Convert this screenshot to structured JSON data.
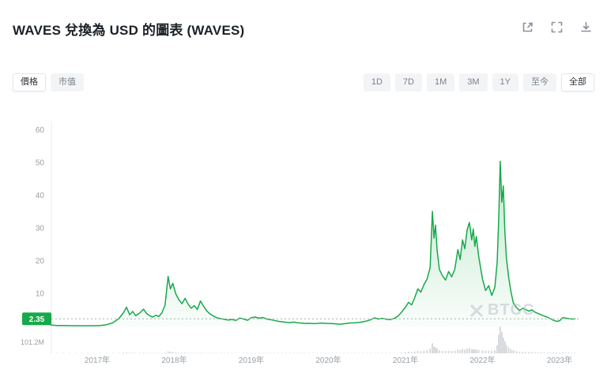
{
  "header": {
    "title": "WAVES 兌換為 USD 的圖表 (WAVES)",
    "icons": [
      {
        "name": "share-icon"
      },
      {
        "name": "fullscreen-icon"
      },
      {
        "name": "download-icon"
      }
    ]
  },
  "controls": {
    "metric_tabs": [
      {
        "label": "價格",
        "active": true
      },
      {
        "label": "市值",
        "active": false
      }
    ],
    "range_tabs": [
      {
        "label": "1D",
        "active": false
      },
      {
        "label": "7D",
        "active": false
      },
      {
        "label": "1M",
        "active": false
      },
      {
        "label": "3M",
        "active": false
      },
      {
        "label": "1Y",
        "active": false
      },
      {
        "label": "至今",
        "active": false
      },
      {
        "label": "全部",
        "active": true
      }
    ]
  },
  "watermark": {
    "text": "BTCC"
  },
  "chart_data": {
    "type": "line",
    "title": "WAVES 兌換為 USD 的圖表 (WAVES)",
    "line_color": "#17a94a",
    "area_color": "#17a94a",
    "volume_color": "#d7dade",
    "current_price": 2.35,
    "current_price_label": "2.35",
    "volume_axis_label": "101.2M",
    "volume_axis_max": 101.2,
    "y_ticks": [
      10,
      20,
      30,
      40,
      50,
      60
    ],
    "ylim": [
      0,
      62
    ],
    "x_tick_years": [
      2017,
      2018,
      2019,
      2020,
      2021,
      2022,
      2023
    ],
    "x_tick_labels": [
      "2017年",
      "2018年",
      "2019年",
      "2020年",
      "2021年",
      "2022年",
      "2023年"
    ],
    "x_range": [
      2016.4,
      2023.25
    ],
    "series_note": "points are [decimal_year, price_usd, volume_millions]",
    "points": [
      [
        2016.4,
        0.45,
        0.5
      ],
      [
        2016.48,
        0.32,
        0.3
      ],
      [
        2016.56,
        0.28,
        0.2
      ],
      [
        2016.64,
        0.26,
        0.2
      ],
      [
        2016.72,
        0.24,
        0.2
      ],
      [
        2016.8,
        0.24,
        0.2
      ],
      [
        2016.88,
        0.23,
        0.3
      ],
      [
        2016.96,
        0.25,
        0.3
      ],
      [
        2017.04,
        0.3,
        0.4
      ],
      [
        2017.12,
        0.55,
        0.6
      ],
      [
        2017.2,
        1.1,
        1.0
      ],
      [
        2017.28,
        2.4,
        2.0
      ],
      [
        2017.34,
        4.2,
        3.0
      ],
      [
        2017.38,
        5.9,
        4.0
      ],
      [
        2017.42,
        3.6,
        2.5
      ],
      [
        2017.46,
        4.6,
        2.0
      ],
      [
        2017.5,
        3.3,
        1.5
      ],
      [
        2017.55,
        4.1,
        1.8
      ],
      [
        2017.6,
        5.3,
        2.5
      ],
      [
        2017.64,
        4.0,
        1.5
      ],
      [
        2017.68,
        3.3,
        1.2
      ],
      [
        2017.72,
        2.9,
        1.0
      ],
      [
        2017.76,
        3.4,
        1.2
      ],
      [
        2017.8,
        3.1,
        1.0
      ],
      [
        2017.84,
        4.2,
        1.5
      ],
      [
        2017.88,
        6.5,
        3.0
      ],
      [
        2017.92,
        15.3,
        8.0
      ],
      [
        2017.95,
        11.5,
        6.0
      ],
      [
        2017.98,
        13.2,
        5.0
      ],
      [
        2018.02,
        10.0,
        4.0
      ],
      [
        2018.06,
        8.2,
        3.0
      ],
      [
        2018.1,
        7.0,
        2.5
      ],
      [
        2018.14,
        8.6,
        3.0
      ],
      [
        2018.18,
        6.8,
        2.0
      ],
      [
        2018.22,
        5.6,
        1.8
      ],
      [
        2018.26,
        6.4,
        1.5
      ],
      [
        2018.3,
        5.2,
        1.2
      ],
      [
        2018.34,
        7.8,
        2.5
      ],
      [
        2018.38,
        6.2,
        1.8
      ],
      [
        2018.42,
        4.8,
        1.2
      ],
      [
        2018.46,
        3.9,
        1.0
      ],
      [
        2018.5,
        3.3,
        0.8
      ],
      [
        2018.55,
        2.7,
        0.7
      ],
      [
        2018.6,
        2.4,
        0.6
      ],
      [
        2018.65,
        2.2,
        0.6
      ],
      [
        2018.7,
        2.0,
        0.5
      ],
      [
        2018.75,
        2.15,
        0.5
      ],
      [
        2018.8,
        1.85,
        0.5
      ],
      [
        2018.85,
        2.6,
        0.8
      ],
      [
        2018.9,
        2.3,
        0.6
      ],
      [
        2018.95,
        1.9,
        0.5
      ],
      [
        2019.0,
        2.7,
        0.8
      ],
      [
        2019.05,
        2.9,
        0.8
      ],
      [
        2019.1,
        2.55,
        0.6
      ],
      [
        2019.15,
        2.75,
        0.6
      ],
      [
        2019.2,
        2.3,
        0.5
      ],
      [
        2019.25,
        2.1,
        0.5
      ],
      [
        2019.3,
        1.85,
        0.4
      ],
      [
        2019.35,
        1.6,
        0.4
      ],
      [
        2019.4,
        1.45,
        0.4
      ],
      [
        2019.45,
        1.3,
        0.3
      ],
      [
        2019.5,
        1.2,
        0.3
      ],
      [
        2019.55,
        1.35,
        0.3
      ],
      [
        2019.6,
        1.15,
        0.3
      ],
      [
        2019.65,
        1.05,
        0.3
      ],
      [
        2019.7,
        0.95,
        0.3
      ],
      [
        2019.75,
        1.0,
        0.3
      ],
      [
        2019.8,
        0.9,
        0.3
      ],
      [
        2019.85,
        0.95,
        0.3
      ],
      [
        2019.9,
        1.05,
        0.3
      ],
      [
        2019.95,
        0.98,
        0.3
      ],
      [
        2020.0,
        0.95,
        0.4
      ],
      [
        2020.05,
        0.88,
        0.4
      ],
      [
        2020.1,
        0.8,
        0.5
      ],
      [
        2020.15,
        0.7,
        0.5
      ],
      [
        2020.2,
        0.85,
        0.4
      ],
      [
        2020.25,
        1.0,
        0.4
      ],
      [
        2020.3,
        1.1,
        0.5
      ],
      [
        2020.35,
        1.15,
        0.5
      ],
      [
        2020.4,
        1.25,
        0.5
      ],
      [
        2020.45,
        1.45,
        0.6
      ],
      [
        2020.5,
        1.7,
        0.8
      ],
      [
        2020.55,
        2.1,
        1.0
      ],
      [
        2020.6,
        2.65,
        1.5
      ],
      [
        2020.65,
        2.3,
        1.2
      ],
      [
        2020.7,
        2.5,
        1.2
      ],
      [
        2020.75,
        2.25,
        1.0
      ],
      [
        2020.8,
        2.1,
        1.0
      ],
      [
        2020.85,
        2.45,
        1.2
      ],
      [
        2020.9,
        3.1,
        1.5
      ],
      [
        2020.95,
        4.4,
        2.5
      ],
      [
        2021.0,
        5.9,
        4.0
      ],
      [
        2021.04,
        7.4,
        6.0
      ],
      [
        2021.08,
        6.6,
        5.0
      ],
      [
        2021.12,
        8.8,
        7.0
      ],
      [
        2021.16,
        11.5,
        9.0
      ],
      [
        2021.2,
        10.5,
        8.0
      ],
      [
        2021.24,
        12.8,
        10.0
      ],
      [
        2021.28,
        14.5,
        12.0
      ],
      [
        2021.32,
        18.0,
        18.0
      ],
      [
        2021.35,
        35.2,
        38.0
      ],
      [
        2021.37,
        27.0,
        25.0
      ],
      [
        2021.39,
        31.0,
        22.0
      ],
      [
        2021.41,
        23.5,
        18.0
      ],
      [
        2021.44,
        17.5,
        12.0
      ],
      [
        2021.48,
        15.5,
        10.0
      ],
      [
        2021.52,
        14.2,
        9.0
      ],
      [
        2021.56,
        16.8,
        10.0
      ],
      [
        2021.6,
        15.2,
        9.0
      ],
      [
        2021.64,
        17.5,
        10.0
      ],
      [
        2021.68,
        23.5,
        14.0
      ],
      [
        2021.71,
        20.5,
        12.0
      ],
      [
        2021.74,
        26.5,
        16.0
      ],
      [
        2021.77,
        23.8,
        14.0
      ],
      [
        2021.8,
        29.5,
        18.0
      ],
      [
        2021.83,
        31.8,
        20.0
      ],
      [
        2021.86,
        26.5,
        15.0
      ],
      [
        2021.88,
        29.8,
        16.0
      ],
      [
        2021.9,
        24.5,
        14.0
      ],
      [
        2021.92,
        27.5,
        15.0
      ],
      [
        2021.95,
        21.5,
        13.0
      ],
      [
        2022.0,
        14.5,
        12.0
      ],
      [
        2022.04,
        11.0,
        10.0
      ],
      [
        2022.08,
        12.5,
        10.0
      ],
      [
        2022.12,
        9.5,
        9.0
      ],
      [
        2022.16,
        12.0,
        12.0
      ],
      [
        2022.19,
        19.5,
        30.0
      ],
      [
        2022.21,
        33.0,
        70.0
      ],
      [
        2022.23,
        50.5,
        101.2
      ],
      [
        2022.25,
        38.0,
        80.0
      ],
      [
        2022.27,
        43.0,
        60.0
      ],
      [
        2022.29,
        29.0,
        45.0
      ],
      [
        2022.31,
        21.0,
        30.0
      ],
      [
        2022.34,
        15.0,
        22.0
      ],
      [
        2022.37,
        10.5,
        15.0
      ],
      [
        2022.4,
        7.2,
        12.0
      ],
      [
        2022.44,
        5.8,
        8.0
      ],
      [
        2022.48,
        4.9,
        6.0
      ],
      [
        2022.52,
        5.6,
        6.0
      ],
      [
        2022.56,
        5.2,
        5.0
      ],
      [
        2022.6,
        4.7,
        5.0
      ],
      [
        2022.64,
        5.1,
        5.0
      ],
      [
        2022.68,
        4.4,
        4.0
      ],
      [
        2022.72,
        4.0,
        4.0
      ],
      [
        2022.76,
        3.6,
        3.5
      ],
      [
        2022.8,
        3.2,
        3.0
      ],
      [
        2022.84,
        2.9,
        3.0
      ],
      [
        2022.88,
        2.4,
        2.5
      ],
      [
        2022.92,
        1.9,
        2.5
      ],
      [
        2022.96,
        1.6,
        3.0
      ],
      [
        2023.0,
        1.75,
        3.0
      ],
      [
        2023.04,
        2.7,
        4.0
      ],
      [
        2023.08,
        2.55,
        3.0
      ],
      [
        2023.12,
        2.4,
        2.5
      ],
      [
        2023.16,
        2.3,
        2.0
      ],
      [
        2023.2,
        2.35,
        2.0
      ]
    ]
  }
}
